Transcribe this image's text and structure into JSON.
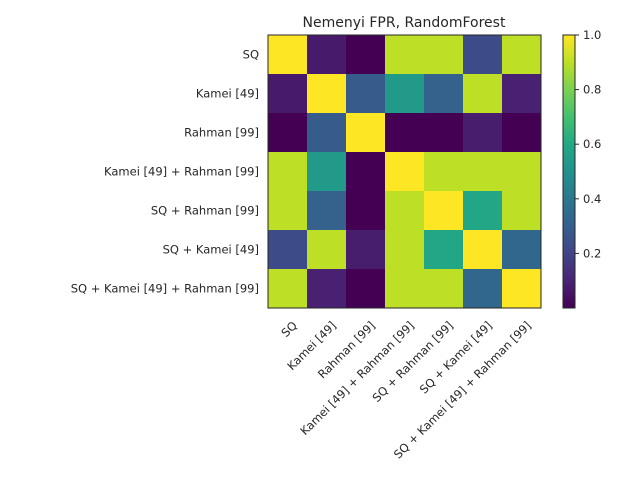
{
  "chart_data": {
    "type": "heatmap",
    "title": "Nemenyi FPR, RandomForest",
    "xlabel": "",
    "ylabel": "",
    "categories": [
      "SQ",
      "Kamei [49]",
      "Rahman [99]",
      "Kamei [49] + Rahman [99]",
      "SQ + Rahman [99]",
      "SQ + Kamei [49]",
      "SQ + Kamei [49] + Rahman [99]"
    ],
    "values": [
      [
        1.0,
        0.07,
        0.0,
        0.9,
        0.9,
        0.23,
        0.9
      ],
      [
        0.07,
        1.0,
        0.29,
        0.54,
        0.31,
        0.9,
        0.09
      ],
      [
        0.0,
        0.29,
        1.0,
        0.0,
        0.0,
        0.08,
        0.0
      ],
      [
        0.9,
        0.54,
        0.0,
        1.0,
        0.9,
        0.9,
        0.9
      ],
      [
        0.9,
        0.31,
        0.0,
        0.9,
        1.0,
        0.59,
        0.9
      ],
      [
        0.23,
        0.9,
        0.08,
        0.9,
        0.59,
        1.0,
        0.33
      ],
      [
        0.9,
        0.09,
        0.0,
        0.9,
        0.9,
        0.33,
        1.0
      ]
    ],
    "colormap": "viridis",
    "vmin": 0.0,
    "vmax": 1.0,
    "colorbar_ticks": [
      "0.2",
      "0.4",
      "0.6",
      "0.8",
      "1.0"
    ],
    "colorbar_tick_values": [
      0.2,
      0.4,
      0.6,
      0.8,
      1.0
    ],
    "grid": false,
    "legend": "colorbar-right"
  }
}
